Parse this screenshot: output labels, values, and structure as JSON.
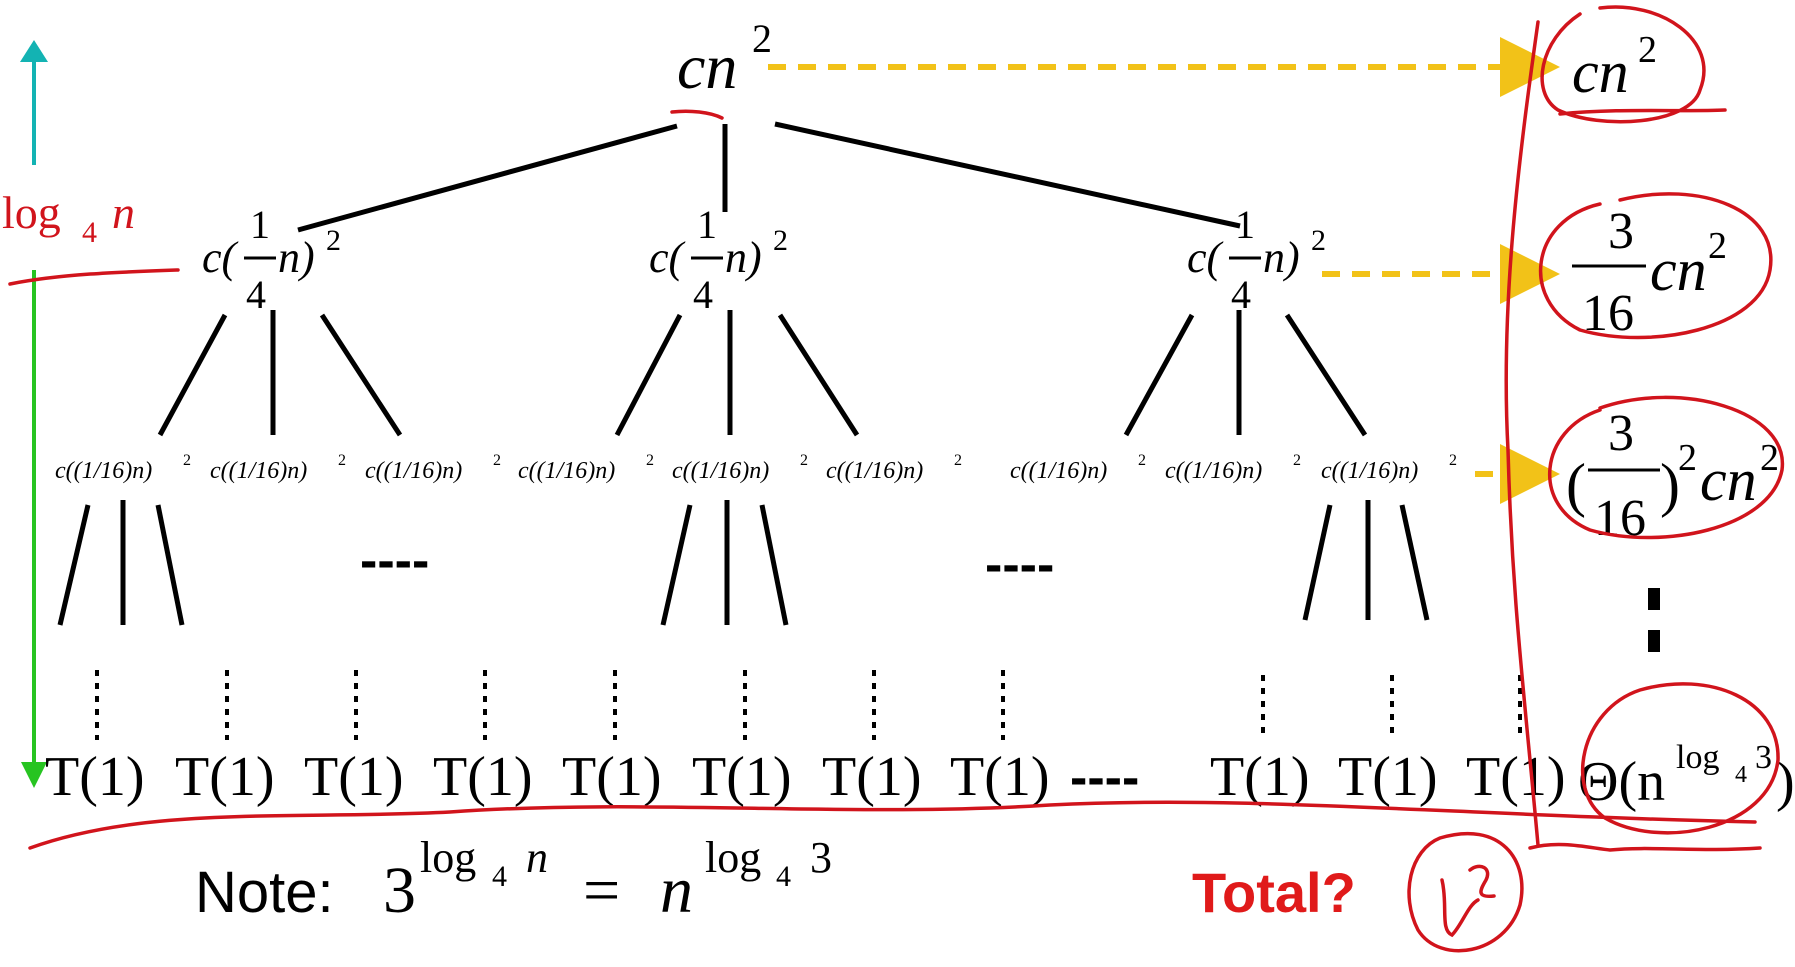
{
  "root": {
    "base": "cn",
    "exp": "2"
  },
  "level1_node": {
    "prefix": "c(",
    "num": "1",
    "den": "4",
    "var": "n)",
    "exp": "2"
  },
  "level2_node": {
    "text": "c((1/16)n)",
    "exp": "2"
  },
  "leaf": "T(1)",
  "ellipsis": "----",
  "height_label": {
    "base": "log",
    "sub": "4",
    "var": "n"
  },
  "note": {
    "label": "Note:",
    "lhs_base": "3",
    "lhs_exp_base": "log",
    "lhs_exp_sub": "4",
    "lhs_exp_var": "n",
    "eq": "=",
    "rhs_base": "n",
    "rhs_exp_base": "log",
    "rhs_exp_sub": "4",
    "rhs_exp_var": "3"
  },
  "sums": {
    "row0": {
      "base": "cn",
      "exp": "2"
    },
    "row1": {
      "num": "3",
      "den": "16",
      "tail": "cn",
      "exp": "2"
    },
    "row2": {
      "open": "(",
      "num": "3",
      "den": "16",
      "close": ")",
      "exp1": "2",
      "tail": "cn",
      "exp2": "2"
    },
    "vdots": "⋮",
    "leaves": {
      "theta": "Θ(n",
      "exp_base": "log",
      "exp_sub": "4",
      "exp_var": "3",
      "close": ")"
    }
  },
  "total_label": "Total?",
  "handwritten_answer": "n²",
  "colors": {
    "arrow_up": "#13b3b3",
    "arrow_down": "#27c421",
    "dotted_arrow": "#f2c218",
    "red_ink": "#d1141c",
    "total_text": "#e01a1a"
  }
}
